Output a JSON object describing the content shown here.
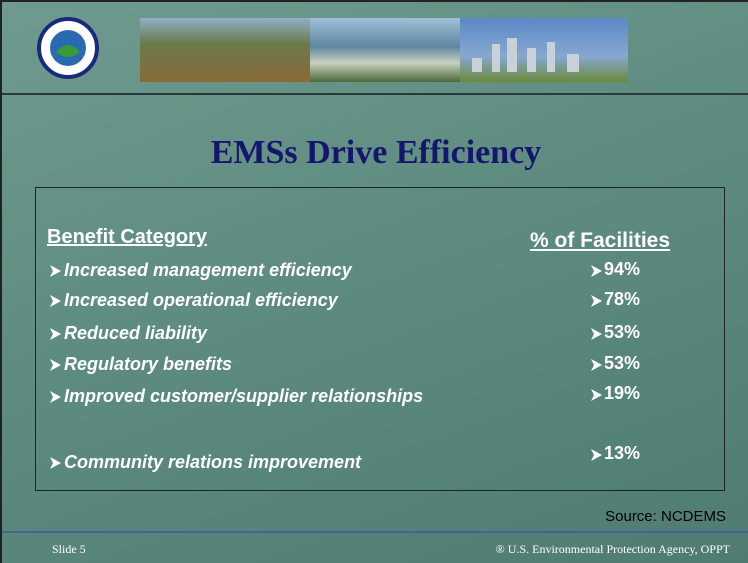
{
  "title": "EMSs Drive Efficiency",
  "table": {
    "columns": [
      "Benefit Category",
      "% of Facilities"
    ],
    "rows": [
      [
        "Increased management efficiency",
        "94%"
      ],
      [
        "Increased operational efficiency",
        "78%"
      ],
      [
        "Reduced liability",
        "53%"
      ],
      [
        "Regulatory benefits",
        "53%"
      ],
      [
        "Improved customer/supplier relationships",
        "19%"
      ],
      [
        "Community relations improvement",
        "13%"
      ]
    ]
  },
  "source": "Source: NCDEMS",
  "footer": {
    "left": "Slide 5",
    "right": "® U.S. Environmental Protection Agency, OPPT"
  }
}
